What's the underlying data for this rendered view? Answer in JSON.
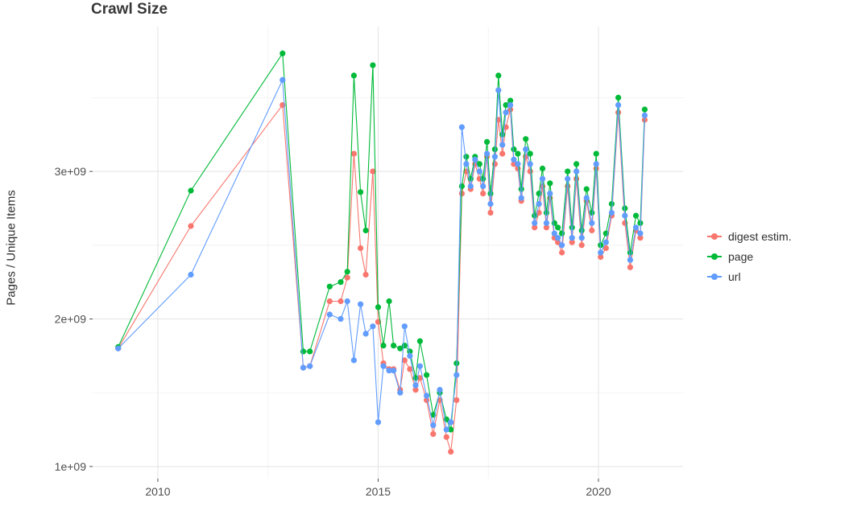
{
  "chart_data": {
    "type": "line",
    "title": "Crawl Size",
    "xlabel": "",
    "ylabel": "Pages / Unique Items",
    "y_unit": "1e9 (values below are in billions)",
    "grid": true,
    "legend_position": "right",
    "xlim": [
      2008.52,
      2021.92
    ],
    "ylim": [
      0.918,
      3.982
    ],
    "x_ticks": {
      "values": [
        2010,
        2015,
        2020
      ],
      "labels": [
        "2010",
        "2015",
        "2020"
      ]
    },
    "x_minor": [
      2012.5,
      2017.5
    ],
    "y_ticks": {
      "values": [
        1,
        2,
        3
      ],
      "labels": [
        "1e+09",
        "2e+09",
        "3e+09"
      ]
    },
    "y_minor": [
      1.5,
      2.5,
      3.5
    ],
    "x": [
      2009.1,
      2010.75,
      2012.83,
      2013.3,
      2013.45,
      2013.9,
      2014.15,
      2014.3,
      2014.45,
      2014.6,
      2014.72,
      2014.88,
      2015.0,
      2015.12,
      2015.25,
      2015.35,
      2015.5,
      2015.6,
      2015.72,
      2015.85,
      2015.95,
      2016.1,
      2016.25,
      2016.4,
      2016.55,
      2016.65,
      2016.78,
      2016.9,
      2017.0,
      2017.1,
      2017.2,
      2017.3,
      2017.38,
      2017.47,
      2017.55,
      2017.65,
      2017.73,
      2017.82,
      2017.9,
      2018.0,
      2018.08,
      2018.17,
      2018.25,
      2018.35,
      2018.45,
      2018.55,
      2018.65,
      2018.73,
      2018.82,
      2018.9,
      2019.0,
      2019.08,
      2019.17,
      2019.3,
      2019.4,
      2019.5,
      2019.62,
      2019.73,
      2019.85,
      2019.95,
      2020.05,
      2020.17,
      2020.3,
      2020.45,
      2020.6,
      2020.72,
      2020.85,
      2020.95,
      2021.05
    ],
    "series": [
      {
        "name": "digest estim.",
        "color": "#F8766D",
        "values": [
          1.8,
          2.63,
          3.45,
          1.67,
          1.68,
          2.12,
          2.12,
          2.28,
          3.12,
          2.48,
          2.3,
          3.0,
          1.98,
          1.7,
          1.66,
          1.66,
          1.52,
          1.72,
          1.66,
          1.52,
          1.6,
          1.45,
          1.22,
          1.45,
          1.2,
          1.1,
          1.45,
          2.85,
          3.0,
          2.88,
          3.05,
          2.95,
          2.85,
          3.1,
          2.72,
          3.05,
          3.35,
          3.12,
          3.3,
          3.42,
          3.05,
          3.02,
          2.8,
          3.1,
          3.0,
          2.62,
          2.72,
          2.9,
          2.62,
          2.82,
          2.55,
          2.52,
          2.45,
          2.9,
          2.52,
          2.95,
          2.5,
          2.8,
          2.6,
          3.02,
          2.42,
          2.48,
          2.7,
          3.4,
          2.65,
          2.35,
          2.6,
          2.55,
          3.35
        ]
      },
      {
        "name": "page",
        "color": "#00BA38",
        "values": [
          1.81,
          2.87,
          3.8,
          1.78,
          1.78,
          2.22,
          2.25,
          2.32,
          3.65,
          2.86,
          2.6,
          3.72,
          2.08,
          1.82,
          2.12,
          1.82,
          1.8,
          1.82,
          1.78,
          1.6,
          1.85,
          1.62,
          1.35,
          1.5,
          1.32,
          1.25,
          1.7,
          2.9,
          3.1,
          2.95,
          3.1,
          3.05,
          2.95,
          3.2,
          2.85,
          3.15,
          3.65,
          3.25,
          3.45,
          3.48,
          3.15,
          3.12,
          2.88,
          3.22,
          3.12,
          2.7,
          2.85,
          3.02,
          2.72,
          2.92,
          2.65,
          2.62,
          2.58,
          3.0,
          2.62,
          3.05,
          2.6,
          2.88,
          2.72,
          3.12,
          2.5,
          2.58,
          2.78,
          3.5,
          2.75,
          2.45,
          2.7,
          2.65,
          3.42
        ]
      },
      {
        "name": "url",
        "color": "#619CFF",
        "values": [
          1.8,
          2.3,
          3.62,
          1.67,
          1.68,
          2.03,
          2.0,
          2.12,
          1.72,
          2.1,
          1.9,
          1.95,
          1.3,
          1.68,
          1.65,
          1.65,
          1.5,
          1.95,
          1.75,
          1.55,
          1.68,
          1.48,
          1.28,
          1.52,
          1.25,
          1.3,
          1.62,
          3.3,
          3.05,
          2.9,
          3.08,
          3.0,
          2.9,
          3.12,
          2.78,
          3.1,
          3.55,
          3.18,
          3.4,
          3.45,
          3.08,
          3.05,
          2.82,
          3.15,
          3.05,
          2.65,
          2.78,
          2.95,
          2.65,
          2.85,
          2.58,
          2.55,
          2.5,
          2.95,
          2.55,
          3.0,
          2.55,
          2.82,
          2.65,
          3.05,
          2.45,
          2.52,
          2.72,
          3.45,
          2.7,
          2.4,
          2.62,
          2.58,
          3.38
        ]
      }
    ]
  }
}
